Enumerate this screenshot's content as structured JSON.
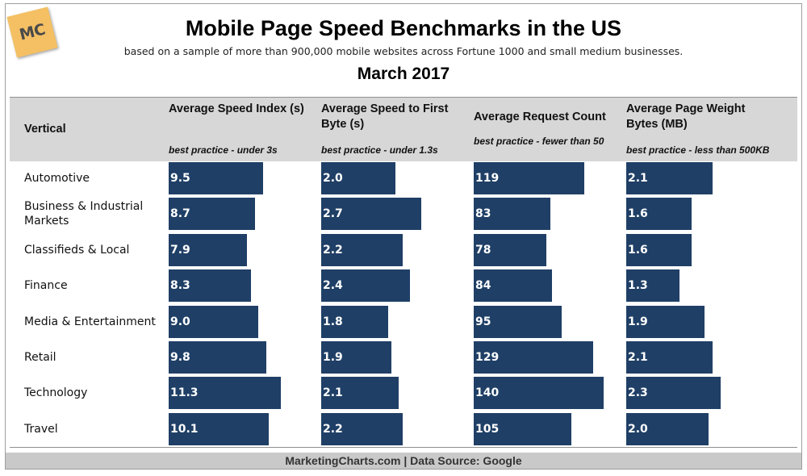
{
  "logo": {
    "text": "MC",
    "color": "#f4c063"
  },
  "title": "Mobile Page Speed Benchmarks in the US",
  "subtitle": "based on a sample of more than 900,000 mobile websites across Fortune 1000 and small medium businesses.",
  "date": "March 2017",
  "footer": "MarketingCharts.com | Data Source: Google",
  "colors": {
    "bar": "#1f3f66",
    "header_band": "#d7d7d7",
    "footer_band": "#c9c9c9"
  },
  "chart_data": {
    "type": "bar",
    "orientation": "horizontal",
    "row_header": "Vertical",
    "categories": [
      "Automotive",
      "Business & Industrial Markets",
      "Classifieds & Local",
      "Finance",
      "Media & Entertainment",
      "Retail",
      "Technology",
      "Travel"
    ],
    "series": [
      {
        "name": "Average Speed Index (s)",
        "note": "best practice - under 3s",
        "values": [
          9.5,
          8.7,
          7.9,
          8.3,
          9.0,
          9.8,
          11.3,
          10.1
        ],
        "labels": [
          "9.5",
          "8.7",
          "7.9",
          "8.3",
          "9.0",
          "9.8",
          "11.3",
          "10.1"
        ]
      },
      {
        "name": "Average Speed to First Byte (s)",
        "note": "best practice - under 1.3s",
        "values": [
          2.0,
          2.7,
          2.2,
          2.4,
          1.8,
          1.9,
          2.1,
          2.2
        ],
        "labels": [
          "2.0",
          "2.7",
          "2.2",
          "2.4",
          "1.8",
          "1.9",
          "2.1",
          "2.2"
        ]
      },
      {
        "name": "Average Request Count",
        "note": "best practice - fewer than 50",
        "values": [
          119,
          83,
          78,
          84,
          95,
          129,
          140,
          105
        ],
        "labels": [
          "119",
          "83",
          "78",
          "84",
          "95",
          "129",
          "140",
          "105"
        ]
      },
      {
        "name": "Average Page Weight Bytes (MB)",
        "note": "best practice - less than 500KB",
        "values": [
          2.1,
          1.6,
          1.6,
          1.3,
          1.9,
          2.1,
          2.3,
          2.0
        ],
        "labels": [
          "2.1",
          "1.6",
          "1.6",
          "1.3",
          "1.9",
          "2.1",
          "2.3",
          "2.0"
        ]
      }
    ]
  }
}
